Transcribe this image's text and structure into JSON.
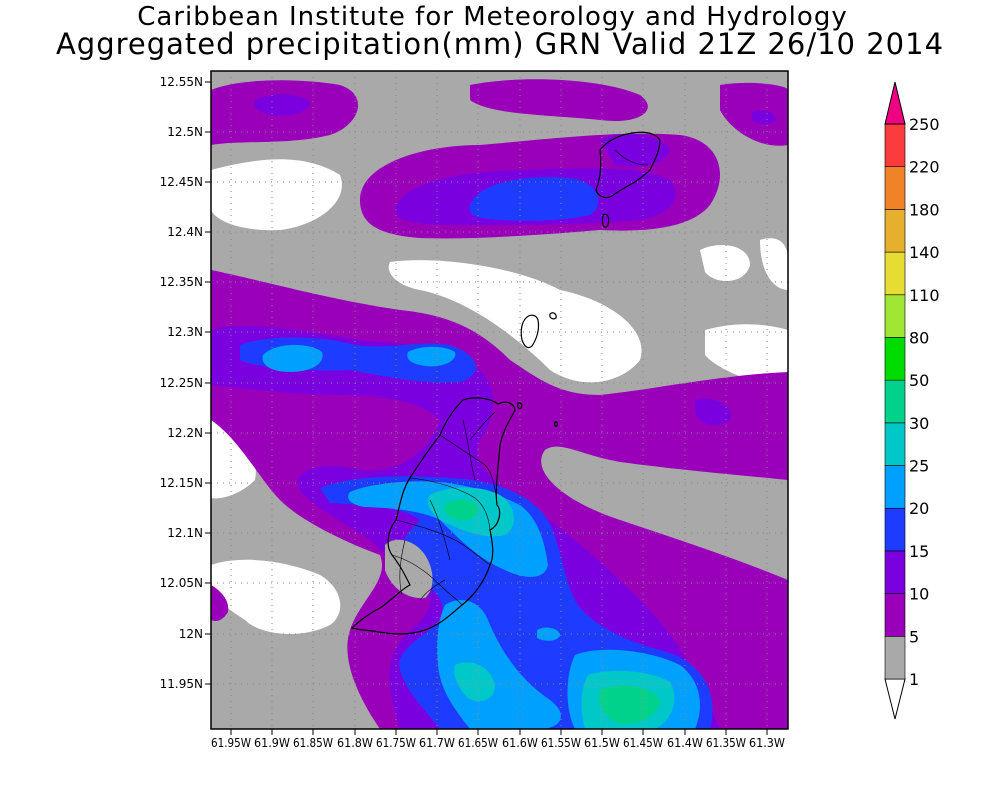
{
  "header": {
    "title": "Caribbean Institute for Meteorology and Hydrology",
    "subtitle": "Aggregated precipitation(mm) GRN Valid 21Z 26/10 2014"
  },
  "map": {
    "lat_labels": [
      "12.55N",
      "12.5N",
      "12.45N",
      "12.4N",
      "12.35N",
      "12.3N",
      "12.25N",
      "12.2N",
      "12.15N",
      "12.1N",
      "12.05N",
      "12N",
      "11.95N"
    ],
    "lon_labels": [
      "61.95W",
      "61.9W",
      "61.85W",
      "61.8W",
      "61.75W",
      "61.7W",
      "61.65W",
      "61.6W",
      "61.55W",
      "61.5W",
      "61.45W",
      "61.4W",
      "61.35W",
      "61.3W"
    ]
  },
  "legend": {
    "levels": [
      "1",
      "5",
      "10",
      "15",
      "20",
      "25",
      "30",
      "50",
      "80",
      "110",
      "140",
      "180",
      "220",
      "250"
    ],
    "colors": [
      "#ffffff",
      "#a9a9a9",
      "#9a00b9",
      "#7a00e0",
      "#1e3cff",
      "#00a0ff",
      "#00c8c8",
      "#00d28c",
      "#00dc00",
      "#a0e632",
      "#e6dc32",
      "#e6af2d",
      "#f08228",
      "#fa3c3c",
      "#f00082"
    ]
  },
  "colors": {
    "no_rain": "#ffffff",
    "light": "#a9a9a9",
    "magenta": "#9a00b9",
    "violet": "#7a00e0",
    "blue": "#1e3cff",
    "sky": "#00a0ff",
    "teal": "#00c8c8",
    "green": "#00d28c"
  }
}
